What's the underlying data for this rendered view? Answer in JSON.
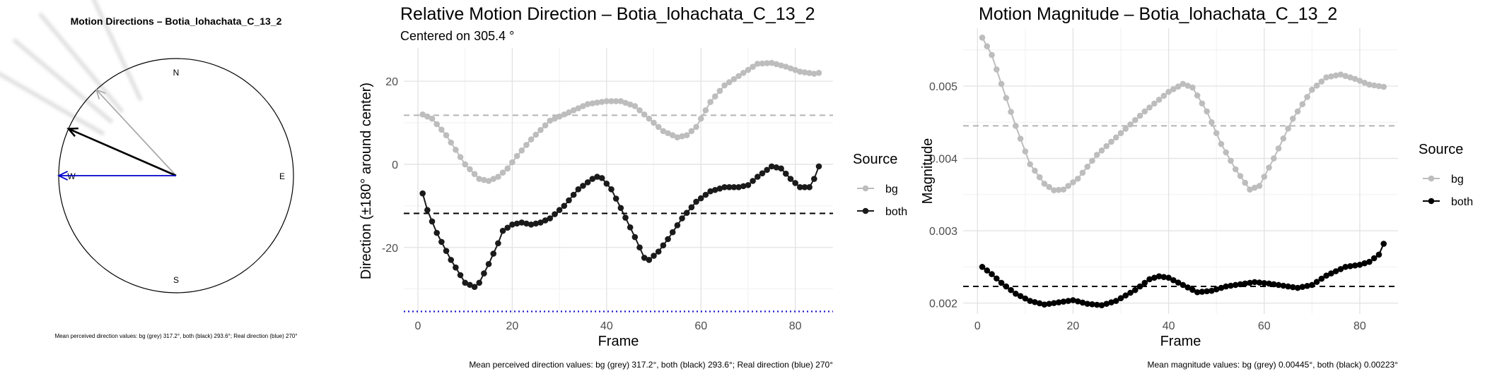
{
  "chart_data": [
    {
      "type": "compass",
      "title": "Motion Directions – Botia_lohachata_C_13_2",
      "cardinals": {
        "n": "N",
        "e": "E",
        "s": "S",
        "w": "W"
      },
      "arrows": [
        {
          "name": "bg",
          "direction_deg": 317.2,
          "color": "#aaaaaa"
        },
        {
          "name": "both",
          "direction_deg": 293.6,
          "color": "#000000"
        },
        {
          "name": "real",
          "direction_deg": 270,
          "color": "#0000cc"
        }
      ],
      "ghost_arrows_deg": [
        300,
        310,
        320,
        335
      ],
      "caption": "Mean perceived direction values: bg (grey) 317.2°, both (black) 293.6°; Real direction (blue) 270°"
    },
    {
      "type": "line",
      "title": "Relative Motion Direction – Botia_lohachata_C_13_2",
      "subtitle": "Centered on  305.4 °",
      "xlabel": "Frame",
      "ylabel": "Direction (±180° around center)",
      "xlim": [
        -3,
        88
      ],
      "ylim": [
        -36,
        28
      ],
      "xticks": [
        0,
        20,
        40,
        60,
        80
      ],
      "yticks": [
        -20,
        0,
        20
      ],
      "grid": true,
      "legend_title": "Source",
      "legend_position": "right",
      "knots": {
        "bg": [
          [
            1,
            12
          ],
          [
            3,
            11
          ],
          [
            6,
            7
          ],
          [
            10,
            0
          ],
          [
            13,
            -3.5
          ],
          [
            15,
            -4
          ],
          [
            17,
            -3
          ],
          [
            19,
            -1
          ],
          [
            21,
            2
          ],
          [
            24,
            6
          ],
          [
            28,
            10.5
          ],
          [
            32,
            12.5
          ],
          [
            36,
            14.5
          ],
          [
            40,
            15.2
          ],
          [
            43,
            15.2
          ],
          [
            46,
            14
          ],
          [
            49,
            11
          ],
          [
            52,
            8
          ],
          [
            55,
            6.5
          ],
          [
            57,
            7
          ],
          [
            59,
            9
          ],
          [
            62,
            15
          ],
          [
            65,
            19
          ],
          [
            69,
            22
          ],
          [
            72,
            24.2
          ],
          [
            75,
            24.4
          ],
          [
            78,
            23.5
          ],
          [
            81,
            22.3
          ],
          [
            84,
            21.8
          ],
          [
            85,
            22
          ]
        ],
        "both": [
          [
            1,
            -7
          ],
          [
            2,
            -11
          ],
          [
            4,
            -16.5
          ],
          [
            7,
            -23
          ],
          [
            10,
            -28.5
          ],
          [
            12,
            -29.5
          ],
          [
            13,
            -28.5
          ],
          [
            15,
            -24
          ],
          [
            17,
            -19
          ],
          [
            18,
            -16
          ],
          [
            20,
            -14.5
          ],
          [
            22,
            -14
          ],
          [
            24,
            -14.5
          ],
          [
            26,
            -14
          ],
          [
            28,
            -13
          ],
          [
            31,
            -10
          ],
          [
            34,
            -6
          ],
          [
            37,
            -3.5
          ],
          [
            38,
            -3
          ],
          [
            39,
            -3.3
          ],
          [
            41,
            -6
          ],
          [
            43,
            -10.5
          ],
          [
            46,
            -17.5
          ],
          [
            48,
            -22.5
          ],
          [
            49,
            -23
          ],
          [
            51,
            -21
          ],
          [
            53,
            -18
          ],
          [
            56,
            -13
          ],
          [
            59,
            -9
          ],
          [
            62,
            -6.5
          ],
          [
            65,
            -5.5
          ],
          [
            68,
            -5.5
          ],
          [
            70,
            -5
          ],
          [
            72,
            -3
          ],
          [
            75,
            -0.5
          ],
          [
            77,
            -1
          ],
          [
            79,
            -3.5
          ],
          [
            81,
            -5.5
          ],
          [
            83,
            -5.5
          ],
          [
            84,
            -3.5
          ],
          [
            85,
            -0.5
          ]
        ]
      },
      "point_range": [
        1,
        85
      ],
      "series": [
        {
          "name": "bg",
          "color": "#bdbdbd",
          "mean": 11.8
        },
        {
          "name": "both",
          "color": "#1a1a1a",
          "mean": -11.8
        }
      ],
      "real_direction_value": -35.4,
      "caption": "Mean perceived direction values: bg (grey) 317.2°, both (black) 293.6°; Real direction (blue) 270°"
    },
    {
      "type": "line",
      "title": "Motion Magnitude – Botia_lohachata_C_13_2",
      "xlabel": "Frame",
      "ylabel": "Magnitude",
      "xlim": [
        -3,
        88
      ],
      "ylim": [
        0.00185,
        0.0058
      ],
      "xticks": [
        0,
        20,
        40,
        60,
        80
      ],
      "yticks": [
        0.002,
        0.003,
        0.004,
        0.005
      ],
      "ytick_labels": [
        "0.002",
        "0.003",
        "0.004",
        "0.005"
      ],
      "grid": true,
      "legend_title": "Source",
      "legend_position": "right",
      "knots": {
        "bg": [
          [
            1,
            0.00567
          ],
          [
            3,
            0.00543
          ],
          [
            5,
            0.00503
          ],
          [
            8,
            0.00445
          ],
          [
            11,
            0.00392
          ],
          [
            14,
            0.00365
          ],
          [
            16,
            0.00356
          ],
          [
            18,
            0.00357
          ],
          [
            21,
            0.00372
          ],
          [
            25,
            0.00405
          ],
          [
            30,
            0.00435
          ],
          [
            35,
            0.00465
          ],
          [
            40,
            0.00492
          ],
          [
            43,
            0.00503
          ],
          [
            45,
            0.00498
          ],
          [
            48,
            0.00465
          ],
          [
            51,
            0.0042
          ],
          [
            54,
            0.00385
          ],
          [
            57,
            0.00357
          ],
          [
            59,
            0.00362
          ],
          [
            62,
            0.004
          ],
          [
            66,
            0.00455
          ],
          [
            70,
            0.00495
          ],
          [
            73,
            0.00512
          ],
          [
            76,
            0.00516
          ],
          [
            79,
            0.0051
          ],
          [
            82,
            0.00502
          ],
          [
            85,
            0.00499
          ]
        ],
        "both": [
          [
            1,
            0.0025
          ],
          [
            3,
            0.0024
          ],
          [
            5,
            0.00228
          ],
          [
            8,
            0.00213
          ],
          [
            11,
            0.00203
          ],
          [
            14,
            0.00198
          ],
          [
            17,
            0.00201
          ],
          [
            20,
            0.00204
          ],
          [
            23,
            0.00199
          ],
          [
            26,
            0.00197
          ],
          [
            29,
            0.00203
          ],
          [
            33,
            0.00218
          ],
          [
            36,
            0.00233
          ],
          [
            38,
            0.00237
          ],
          [
            40,
            0.00235
          ],
          [
            43,
            0.00225
          ],
          [
            46,
            0.00215
          ],
          [
            49,
            0.00217
          ],
          [
            52,
            0.00223
          ],
          [
            55,
            0.00226
          ],
          [
            58,
            0.00229
          ],
          [
            61,
            0.00227
          ],
          [
            64,
            0.00224
          ],
          [
            67,
            0.00221
          ],
          [
            70,
            0.00225
          ],
          [
            73,
            0.00238
          ],
          [
            77,
            0.0025
          ],
          [
            80,
            0.00253
          ],
          [
            82,
            0.00257
          ],
          [
            84,
            0.00267
          ],
          [
            85,
            0.00282
          ]
        ]
      },
      "point_range": [
        1,
        85
      ],
      "series": [
        {
          "name": "bg",
          "color": "#bdbdbd",
          "mean": 0.00445
        },
        {
          "name": "both",
          "color": "#000000",
          "mean": 0.00223
        }
      ],
      "caption": "Mean magnitude values: bg (grey) 0.00445°, both (black) 0.00223°"
    }
  ]
}
